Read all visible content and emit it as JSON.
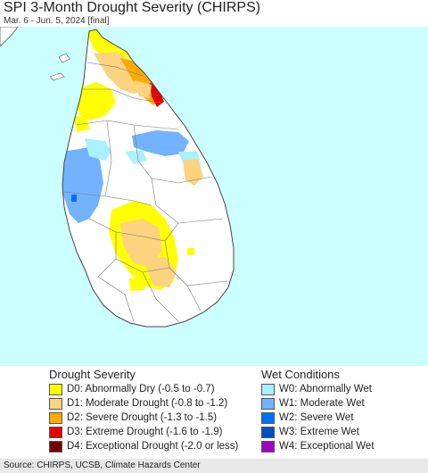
{
  "header": {
    "title": "SPI 3-Month Drought Severity (CHIRPS)",
    "subtitle": "Mar. 6 - Jun. 5, 2024 [final]"
  },
  "map": {
    "region": "Sri Lanka",
    "colors": {
      "ocean": "#ccffff",
      "land": "#ffffff",
      "boundary": "#555555"
    }
  },
  "legend": {
    "drought_heading": "Drought Severity",
    "wet_heading": "Wet Conditions",
    "drought": [
      {
        "label": "D0: Abnormally Dry (-0.5 to -0.7)",
        "color": "#ffff00"
      },
      {
        "label": "D1: Moderate Drought (-0.8 to -1.2)",
        "color": "#fcd37f"
      },
      {
        "label": "D2: Severe Drought (-1.3 to -1.5)",
        "color": "#ffaa00"
      },
      {
        "label": "D3: Extreme Drought (-1.6 to -1.9)",
        "color": "#e60000"
      },
      {
        "label": "D4: Exceptional Drought (-2.0 or less)",
        "color": "#730000"
      }
    ],
    "wet": [
      {
        "label": "W0: Abnormally Wet",
        "color": "#aaf0ff"
      },
      {
        "label": "W1: Moderate Wet",
        "color": "#73b2ff"
      },
      {
        "label": "W2: Severe Wet",
        "color": "#0070ff"
      },
      {
        "label": "W3: Extreme Wet",
        "color": "#0050c8"
      },
      {
        "label": "W4: Exceptional Wet",
        "color": "#a000c8"
      }
    ]
  },
  "footer": {
    "source": "Source: CHIRPS, UCSB, Climate Hazards Center"
  }
}
